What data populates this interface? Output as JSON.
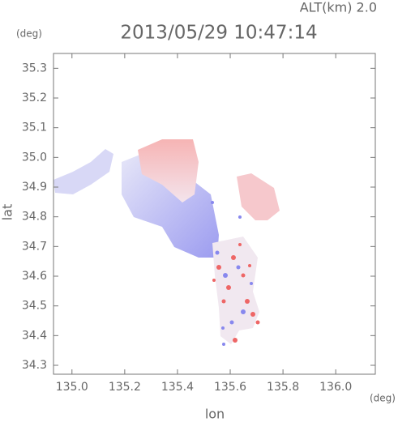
{
  "chart_data": {
    "type": "map",
    "title": "2013/05/29 10:47:14",
    "altitude_label": "ALT(km) 2.0",
    "y_unit": "(deg)",
    "x_unit": "(deg)",
    "y_label": "lat",
    "x_label": "lon",
    "xlim": [
      134.93,
      136.15
    ],
    "xticks": [
      {
        "value": 135.0,
        "label": "135.0"
      },
      135.2,
      135.4,
      135.6,
      135.8,
      {
        "value": 136.0,
        "label": "136.0"
      }
    ],
    "ylim": [
      34.27,
      35.35
    ],
    "yticks": [
      34.3,
      34.4,
      34.5,
      34.6,
      34.7,
      34.8,
      34.9,
      {
        "value": 35.0,
        "label": "35.0"
      },
      35.1,
      35.2,
      35.3
    ]
  }
}
